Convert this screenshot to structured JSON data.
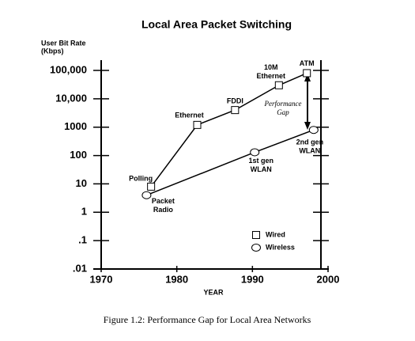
{
  "chart_data": {
    "type": "line",
    "title": "Local Area Packet Switching",
    "y_label": [
      "User Bit Rate",
      "(Kbps)"
    ],
    "x_label": "YEAR",
    "log_y": true,
    "grid": false,
    "xlim": [
      1970,
      2000
    ],
    "xticks": [
      1970,
      1980,
      1990,
      2000
    ],
    "ylim": [
      0.01,
      100000
    ],
    "yticks": [
      {
        "value": 0.01,
        "label": ".01"
      },
      {
        "value": 0.1,
        "label": ".1"
      },
      1,
      10,
      100,
      1000,
      {
        "value": 10000,
        "label": "10,000"
      },
      {
        "value": 100000,
        "label": "100,000"
      }
    ],
    "series": [
      {
        "name": "Wired",
        "marker": "square",
        "color": "#000000",
        "x": [
          1976.6,
          1982.7,
          1987.7,
          1993.5,
          1997.2
        ],
        "values": [
          8,
          1200,
          4000,
          30000,
          80000
        ],
        "labels": [
          [
            "Polling"
          ],
          [
            "Ethernet"
          ],
          [
            "FDDI"
          ],
          [
            "10M",
            "Ethernet"
          ],
          [
            "ATM"
          ]
        ]
      },
      {
        "name": "Wireless",
        "marker": "circle",
        "color": "#000000",
        "x": [
          1976,
          1990.3,
          1998.1
        ],
        "values": [
          4,
          130,
          800
        ],
        "labels": [
          [
            "Packet",
            "Radio"
          ],
          [
            "1st gen",
            "WLAN"
          ],
          [
            "2nd gen",
            "WLAN"
          ]
        ]
      }
    ],
    "annotation": [
      "Performance",
      "Gap"
    ],
    "caption": "Figure 1.2: Performance Gap for Local Area Networks"
  }
}
